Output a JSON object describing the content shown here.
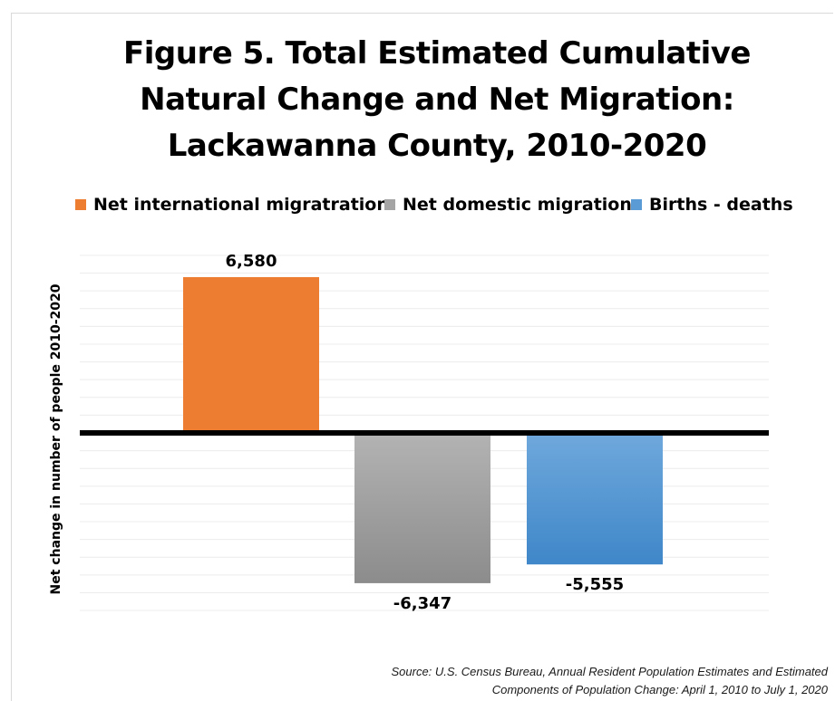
{
  "chart_data": {
    "type": "bar",
    "title_lines": [
      "Figure 5. Total Estimated Cumulative",
      "Natural Change and Net Migration:",
      "Lackawanna County, 2010-2020"
    ],
    "ylabel": "Net change in number of people 2010-2020",
    "xlabel": "",
    "categories": [
      "Net international migratration",
      "Net domestic migration",
      "Births  - deaths"
    ],
    "values": [
      6580,
      -6347,
      -5555
    ],
    "data_labels": [
      "6,580",
      "-6,347",
      "-5,555"
    ],
    "colors": [
      "#ED7D31",
      "#A5A5A5",
      "#5B9BD5"
    ],
    "ylim": [
      -8000,
      8000
    ],
    "grid": true,
    "legend_position": "top",
    "source_lines": [
      "Source: U.S. Census Bureau, Annual Resident Population Estimates and Estimated",
      "Components of Population Change: April 1, 2010 to July 1, 2020"
    ]
  }
}
